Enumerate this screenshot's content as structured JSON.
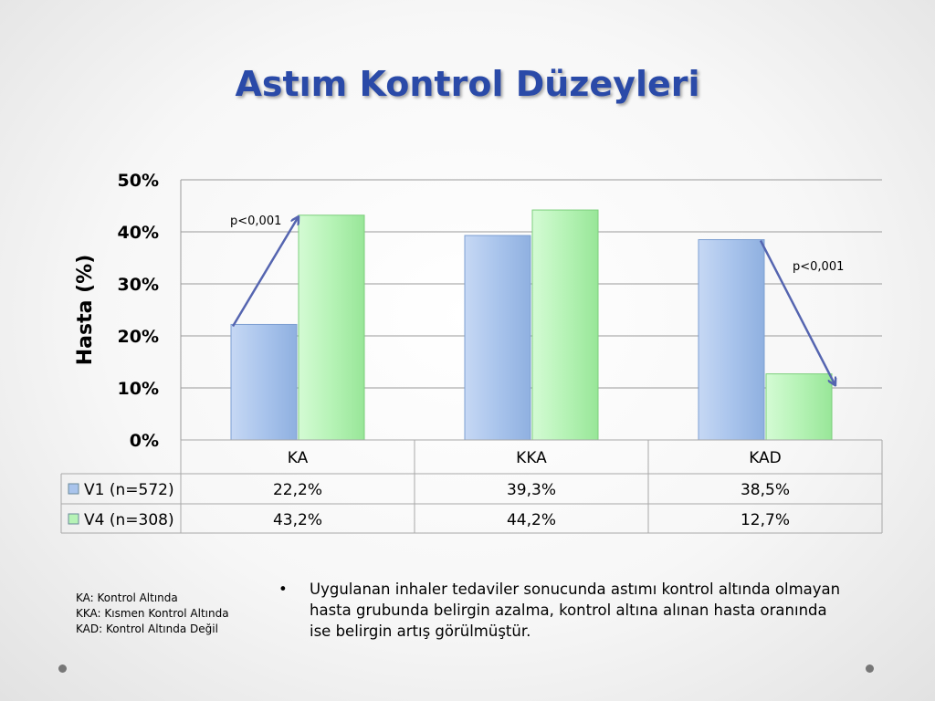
{
  "slide": {
    "title": "Astım Kontrol Düzeyleri",
    "abbreviations": [
      "KA: Kontrol Altında",
      "KKA: Kısmen Kontrol Altında",
      "KAD: Kontrol Altında Değil"
    ],
    "bullet": "Uygulanan inhaler tedaviler sonucunda astımı kontrol altında olmayan hasta grubunda belirgin azalma, kontrol altına alınan hasta oranında ise belirgin artış görülmüştür.",
    "bullet_symbol": "•"
  },
  "chart_data": {
    "type": "bar",
    "ylabel": "Hasta (%)",
    "ylim": [
      0,
      50
    ],
    "yticks": [
      "0%",
      "10%",
      "20%",
      "30%",
      "40%",
      "50%"
    ],
    "categories": [
      "KA",
      "KKA",
      "KAD"
    ],
    "series": [
      {
        "name": "V1 (n=572)",
        "values": [
          22.2,
          39.3,
          38.5
        ],
        "labels": [
          "22,2%",
          "39,3%",
          "38,5%"
        ],
        "color": "#a9c4ec"
      },
      {
        "name": "V4 (n=308)",
        "values": [
          43.2,
          44.2,
          12.7
        ],
        "labels": [
          "43,2%",
          "44,2%",
          "12,7%"
        ],
        "color": "#b6f3b6"
      }
    ],
    "grid": true,
    "data_table": true,
    "annotations": [
      {
        "text": "p<0,001",
        "category": "KA",
        "direction": "increase"
      },
      {
        "text": "p<0,001",
        "category": "KAD",
        "direction": "decrease"
      }
    ],
    "arrow_color": "#5565b0"
  }
}
